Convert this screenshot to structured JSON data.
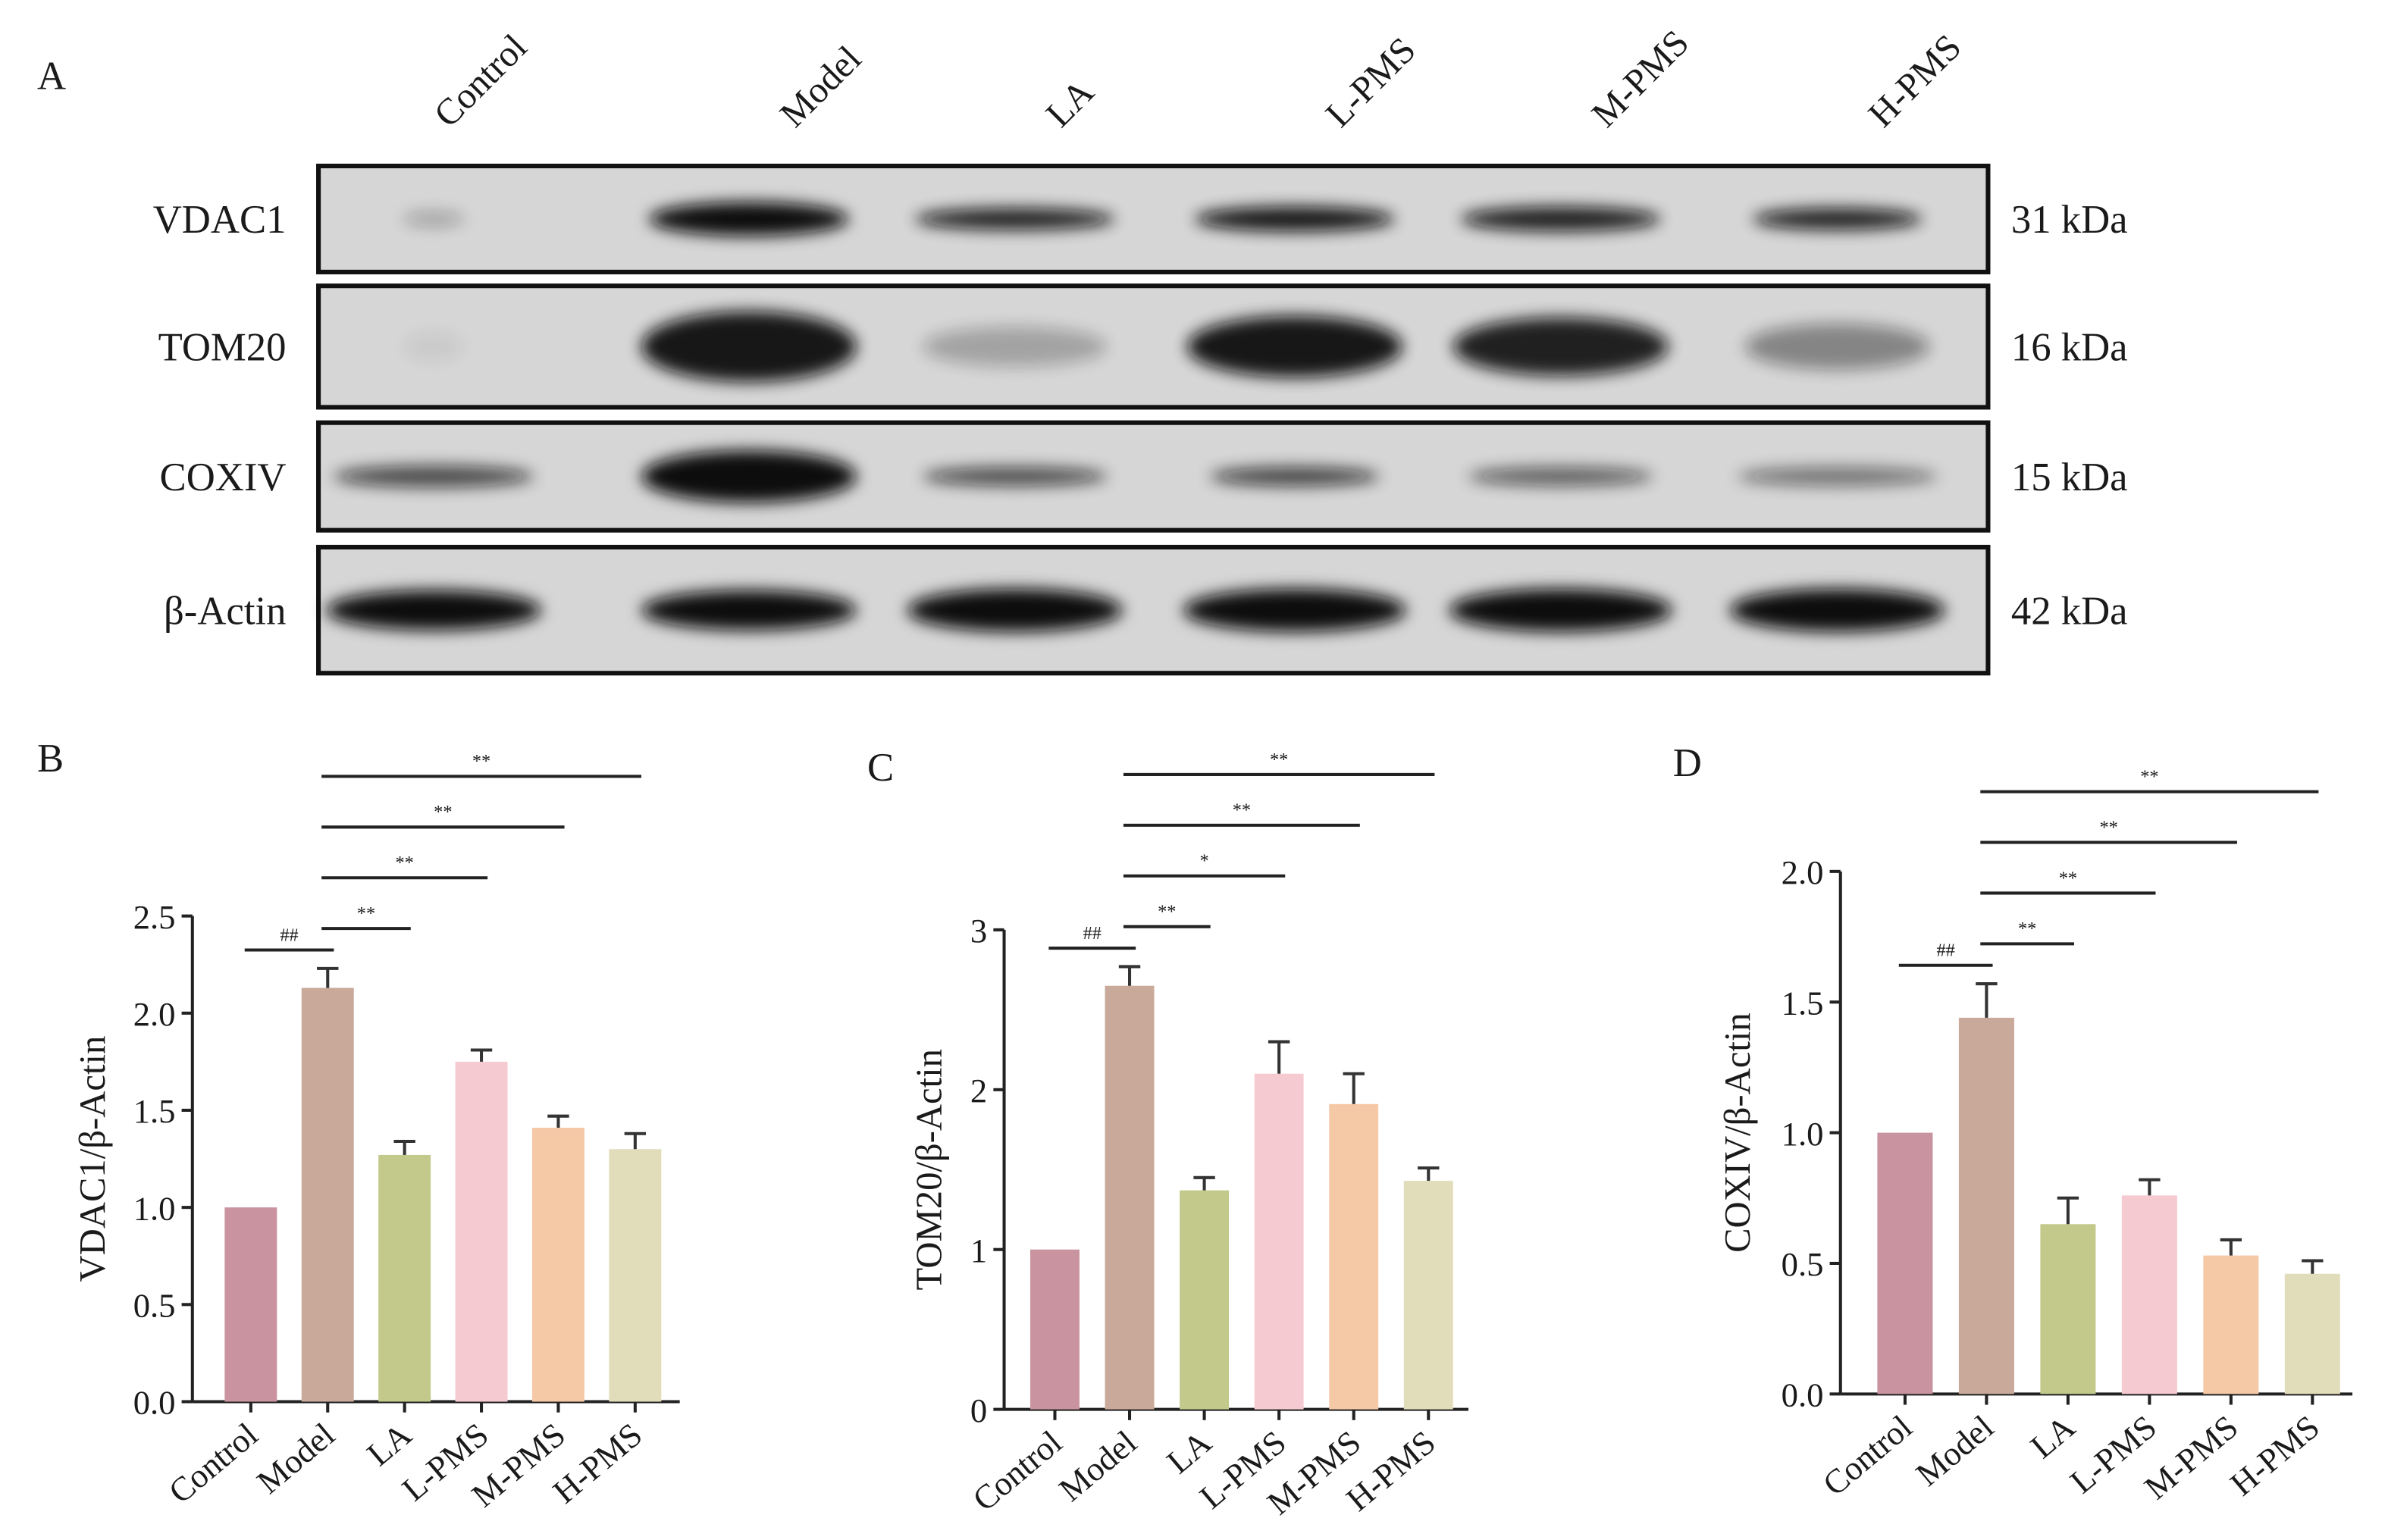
{
  "blot": {
    "panel": "A",
    "lanes": [
      "Control",
      "Model",
      "LA",
      "L-PMS",
      "M-PMS",
      "H-PMS"
    ],
    "proteins": [
      {
        "name": "VDAC1",
        "size": "31 kDa"
      },
      {
        "name": "TOM20",
        "size": "16 kDa"
      },
      {
        "name": "COXIV",
        "size": "15 kDa"
      },
      {
        "name": "β-Actin",
        "size": "42 kDa"
      }
    ]
  },
  "chart_data": [
    {
      "type": "bar",
      "panel": "B",
      "y_label": "VDAC1/β-Actin",
      "categories": [
        "Control",
        "Model",
        "LA",
        "L-PMS",
        "M-PMS",
        "H-PMS"
      ],
      "values": [
        1.0,
        2.13,
        1.27,
        1.75,
        1.41,
        1.3
      ],
      "errors": [
        0,
        0.1,
        0.07,
        0.06,
        0.06,
        0.08
      ],
      "colors": [
        "#c9939f",
        "#c9a999",
        "#c2c98a",
        "#f6cad1",
        "#f6c9a6",
        "#e1ddbb"
      ],
      "ylim": [
        0,
        2.5
      ],
      "yticks": [
        {
          "value": 0,
          "label": "0.0"
        },
        {
          "value": 0.5,
          "label": "0.5"
        },
        {
          "value": 1,
          "label": "1.0"
        },
        {
          "value": 1.5,
          "label": "1.5"
        },
        {
          "value": 2,
          "label": "2.0"
        },
        {
          "value": 2.5,
          "label": "2.5"
        }
      ],
      "significance": [
        {
          "span": [
            "Control",
            "Model"
          ],
          "text": "##"
        },
        {
          "span": [
            "Model",
            "LA"
          ],
          "text": "**"
        },
        {
          "span": [
            "Model",
            "L-PMS"
          ],
          "text": "**"
        },
        {
          "span": [
            "Model",
            "M-PMS"
          ],
          "text": "**"
        },
        {
          "span": [
            "Model",
            "H-PMS"
          ],
          "text": "**"
        }
      ]
    },
    {
      "type": "bar",
      "panel": "C",
      "y_label": "TOM20/β-Actin",
      "categories": [
        "Control",
        "Model",
        "LA",
        "L-PMS",
        "M-PMS",
        "H-PMS"
      ],
      "values": [
        1.0,
        2.65,
        1.37,
        2.1,
        1.91,
        1.43
      ],
      "errors": [
        0,
        0.12,
        0.08,
        0.2,
        0.19,
        0.08
      ],
      "colors": [
        "#c9939f",
        "#c9a999",
        "#c2c98a",
        "#f6cad1",
        "#f6c9a6",
        "#e1ddbb"
      ],
      "ylim": [
        0,
        3
      ],
      "yticks": [
        0,
        1,
        2,
        3
      ],
      "significance": [
        {
          "span": [
            "Control",
            "Model"
          ],
          "text": "##"
        },
        {
          "span": [
            "Model",
            "LA"
          ],
          "text": "**"
        },
        {
          "span": [
            "Model",
            "L-PMS"
          ],
          "text": "*"
        },
        {
          "span": [
            "Model",
            "M-PMS"
          ],
          "text": "**"
        },
        {
          "span": [
            "Model",
            "H-PMS"
          ],
          "text": "**"
        }
      ]
    },
    {
      "type": "bar",
      "panel": "D",
      "y_label": "COXIV/β-Actin",
      "categories": [
        "Control",
        "Model",
        "LA",
        "L-PMS",
        "M-PMS",
        "H-PMS"
      ],
      "values": [
        1.0,
        1.44,
        0.65,
        0.76,
        0.53,
        0.46
      ],
      "errors": [
        0,
        0.13,
        0.1,
        0.06,
        0.06,
        0.05
      ],
      "colors": [
        "#c9939f",
        "#c9a999",
        "#c2c98a",
        "#f6cad1",
        "#f6c9a6",
        "#e1ddbb"
      ],
      "ylim": [
        0,
        2
      ],
      "yticks": [
        {
          "value": 0,
          "label": "0.0"
        },
        {
          "value": 0.5,
          "label": "0.5"
        },
        {
          "value": 1,
          "label": "1.0"
        },
        {
          "value": 1.5,
          "label": "1.5"
        },
        {
          "value": 2,
          "label": "2.0"
        }
      ],
      "significance": [
        {
          "span": [
            "Control",
            "Model"
          ],
          "text": "##"
        },
        {
          "span": [
            "Model",
            "LA"
          ],
          "text": "**"
        },
        {
          "span": [
            "Model",
            "L-PMS"
          ],
          "text": "**"
        },
        {
          "span": [
            "Model",
            "M-PMS"
          ],
          "text": "**"
        },
        {
          "span": [
            "Model",
            "H-PMS"
          ],
          "text": "**"
        }
      ]
    }
  ]
}
